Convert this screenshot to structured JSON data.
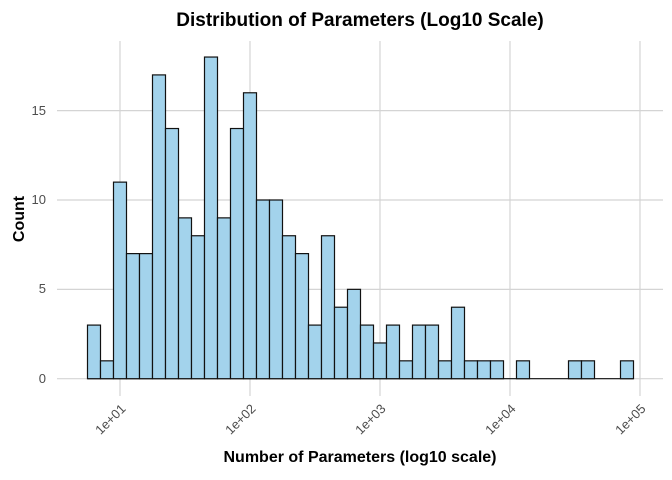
{
  "chart": {
    "title": "Distribution of Parameters (Log10 Scale)",
    "xlabel": "Number of Parameters (log10 scale)",
    "ylabel": "Count"
  },
  "chart_data": {
    "type": "bar",
    "subtype": "histogram",
    "title": "Distribution of Parameters (Log10 Scale)",
    "xlabel": "Number of Parameters (log10 scale)",
    "ylabel": "Count",
    "x_scale": "log10",
    "bin_start_log10": 0.75,
    "bin_width_log10": 0.1,
    "counts": [
      3,
      1,
      11,
      7,
      7,
      17,
      14,
      9,
      8,
      18,
      9,
      14,
      16,
      10,
      10,
      8,
      7,
      3,
      8,
      4,
      5,
      3,
      2,
      3,
      1,
      3,
      3,
      1,
      4,
      1,
      1,
      1,
      0,
      1,
      0,
      0,
      0,
      1,
      1,
      0,
      0,
      1
    ],
    "x_ticks": [
      {
        "log10": 1,
        "value": 10,
        "label": "1e+01"
      },
      {
        "log10": 2,
        "value": 100,
        "label": "1e+02"
      },
      {
        "log10": 3,
        "value": 1000,
        "label": "1e+03"
      },
      {
        "log10": 4,
        "value": 10000,
        "label": "1e+04"
      },
      {
        "log10": 5,
        "value": 100000,
        "label": "1e+05"
      }
    ],
    "y_ticks": [
      {
        "value": 0,
        "label": "0"
      },
      {
        "value": 5,
        "label": "5"
      },
      {
        "value": 10,
        "label": "10"
      },
      {
        "value": 15,
        "label": "15"
      }
    ],
    "ylim": [
      0,
      18.9
    ],
    "xlim_log10": [
      0.52,
      5.18
    ],
    "grid": true,
    "legend": "none",
    "colors": {
      "bar_fill": "#A3D3EC",
      "bar_stroke": "#111111",
      "grid_color": "#D4D4D4",
      "tick_label_color": "#4D4D4D",
      "title_color": "#000000",
      "background": "#FFFFFF"
    }
  }
}
